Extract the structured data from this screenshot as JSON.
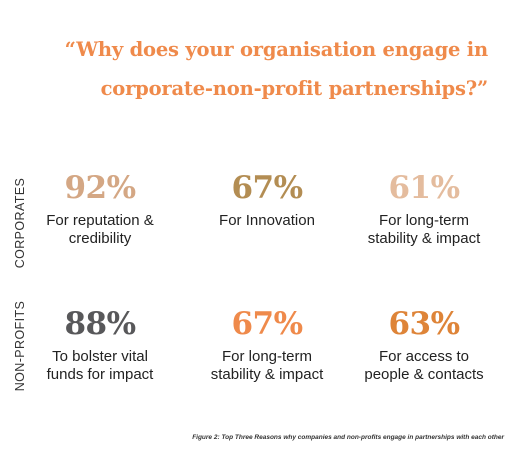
{
  "title": {
    "line1": "“Why does your organisation engage in",
    "line2": "corporate-non-profit partnerships?”"
  },
  "colors": {
    "title": "#ef8a4b",
    "tan": "#d4a784",
    "olive": "#b38d53",
    "light_tan": "#e4bc9e",
    "gray": "#58585a",
    "orange": "#ef8a4b",
    "dark_orange": "#de8438"
  },
  "rows": [
    {
      "label": "CORPORATES",
      "stats": [
        {
          "percent": "92%",
          "line1": "For reputation &",
          "line2": "credibility",
          "color": "#d4a784"
        },
        {
          "percent": "67%",
          "line1": "For Innovation",
          "line2": "",
          "color": "#b38d53"
        },
        {
          "percent": "61%",
          "line1": "For long-term",
          "line2": "stability & impact",
          "color": "#e4bc9e"
        }
      ]
    },
    {
      "label": "NON-PROFITS",
      "stats": [
        {
          "percent": "88%",
          "line1": "To bolster vital",
          "line2": "funds for impact",
          "color": "#58585a"
        },
        {
          "percent": "67%",
          "line1": "For long-term",
          "line2": "stability & impact",
          "color": "#ef8a4b"
        },
        {
          "percent": "63%",
          "line1": "For access to",
          "line2": "people & contacts",
          "color": "#de8438"
        }
      ]
    }
  ],
  "caption": "Figure 2: Top Three Reasons why companies and non-profits engage in partnerships with each other"
}
